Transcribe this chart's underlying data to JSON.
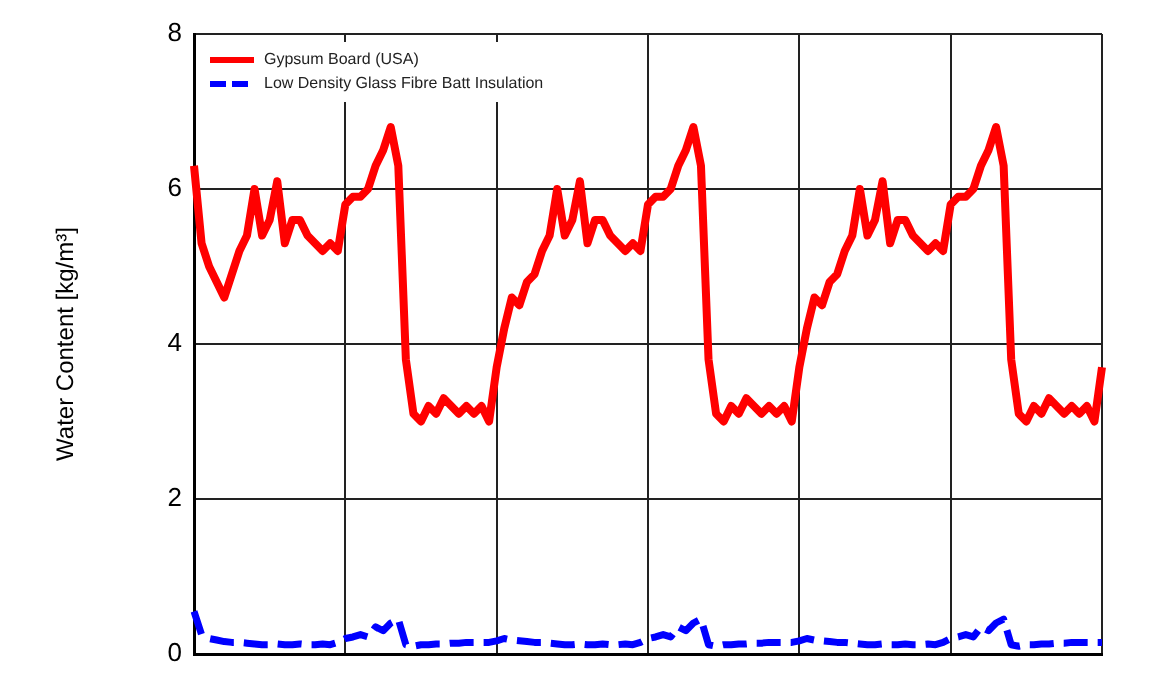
{
  "chart_data": {
    "type": "line",
    "ylabel": "Water Content [kg/m³]",
    "ylim": [
      0,
      8
    ],
    "yticks": [
      0,
      2,
      4,
      6,
      8
    ],
    "grid": true,
    "legend": "top left",
    "tick_labels": "y",
    "marker": "none",
    "categories": [
      null,
      null,
      null,
      null,
      null,
      null,
      null,
      null,
      null,
      null,
      null,
      null,
      null,
      null,
      null,
      null,
      null,
      null,
      null,
      null,
      null,
      null,
      null,
      null,
      null,
      null,
      null,
      null,
      null,
      null,
      null,
      null,
      null,
      null,
      null,
      null,
      null,
      null,
      null,
      null,
      null,
      null,
      null,
      null,
      null,
      null,
      null,
      null,
      null,
      null,
      null,
      null,
      null,
      null,
      null,
      null,
      null,
      null,
      null,
      null,
      null,
      null,
      null,
      null,
      null,
      null,
      null,
      null,
      null,
      null,
      null,
      null,
      null,
      null,
      null,
      null,
      null,
      null,
      null,
      null,
      null,
      null,
      null,
      null,
      null,
      null,
      null,
      null,
      null,
      null,
      null,
      null,
      null,
      null,
      null,
      null,
      null,
      null,
      null,
      null,
      null,
      null,
      null,
      null,
      null,
      null,
      null,
      null,
      null,
      null,
      null,
      null,
      null,
      null,
      null,
      null,
      null,
      null,
      null,
      null,
      null
    ],
    "series": [
      {
        "name": "Gypsum Board (USA)",
        "color": "#ff0000",
        "line_style": "solid",
        "values": [
          6.3,
          5.3,
          5.0,
          4.8,
          4.6,
          4.9,
          5.2,
          5.4,
          6.0,
          5.4,
          5.6,
          6.1,
          5.3,
          5.6,
          5.6,
          5.4,
          5.3,
          5.2,
          5.3,
          5.2,
          5.8,
          5.9,
          5.9,
          6.0,
          6.3,
          6.5,
          6.8,
          6.3,
          3.8,
          3.1,
          3.0,
          3.2,
          3.1,
          3.3,
          3.2,
          3.1,
          3.2,
          3.1,
          3.2,
          3.0,
          3.7,
          4.2,
          4.6,
          4.5,
          4.8,
          4.9,
          5.2,
          5.4,
          6.0,
          5.4,
          5.6,
          6.1,
          5.3,
          5.6,
          5.6,
          5.4,
          5.3,
          5.2,
          5.3,
          5.2,
          5.8,
          5.9,
          5.9,
          6.0,
          6.3,
          6.5,
          6.8,
          6.3,
          3.8,
          3.1,
          3.0,
          3.2,
          3.1,
          3.3,
          3.2,
          3.1,
          3.2,
          3.1,
          3.2,
          3.0,
          3.7,
          4.2,
          4.6,
          4.5,
          4.8,
          4.9,
          5.2,
          5.4,
          6.0,
          5.4,
          5.6,
          6.1,
          5.3,
          5.6,
          5.6,
          5.4,
          5.3,
          5.2,
          5.3,
          5.2,
          5.8,
          5.9,
          5.9,
          6.0,
          6.3,
          6.5,
          6.8,
          6.3,
          3.8,
          3.1,
          3.0,
          3.2,
          3.1,
          3.3,
          3.2,
          3.1,
          3.2,
          3.1,
          3.2,
          3.0,
          3.7
        ]
      },
      {
        "name": "Low Density Glass Fibre Batt Insulation",
        "color": "#0000ff",
        "line_style": "dashed",
        "values": [
          0.55,
          0.25,
          0.2,
          0.18,
          0.16,
          0.15,
          0.15,
          0.14,
          0.13,
          0.12,
          0.12,
          0.13,
          0.12,
          0.12,
          0.13,
          0.12,
          0.12,
          0.13,
          0.12,
          0.15,
          0.2,
          0.22,
          0.25,
          0.22,
          0.35,
          0.3,
          0.4,
          0.45,
          0.12,
          0.1,
          0.12,
          0.12,
          0.13,
          0.13,
          0.14,
          0.14,
          0.15,
          0.15,
          0.15,
          0.15,
          0.17,
          0.2,
          0.18,
          0.17,
          0.16,
          0.15,
          0.15,
          0.14,
          0.13,
          0.12,
          0.12,
          0.13,
          0.12,
          0.12,
          0.13,
          0.12,
          0.12,
          0.13,
          0.12,
          0.15,
          0.2,
          0.22,
          0.25,
          0.22,
          0.35,
          0.3,
          0.4,
          0.45,
          0.12,
          0.1,
          0.12,
          0.12,
          0.13,
          0.13,
          0.14,
          0.14,
          0.15,
          0.15,
          0.15,
          0.15,
          0.17,
          0.2,
          0.18,
          0.17,
          0.16,
          0.15,
          0.15,
          0.14,
          0.13,
          0.12,
          0.12,
          0.13,
          0.12,
          0.12,
          0.13,
          0.12,
          0.12,
          0.13,
          0.12,
          0.15,
          0.2,
          0.22,
          0.25,
          0.22,
          0.35,
          0.3,
          0.4,
          0.45,
          0.12,
          0.1,
          0.12,
          0.12,
          0.13,
          0.13,
          0.14,
          0.14,
          0.15,
          0.15,
          0.15,
          0.15,
          0.15
        ]
      }
    ]
  }
}
